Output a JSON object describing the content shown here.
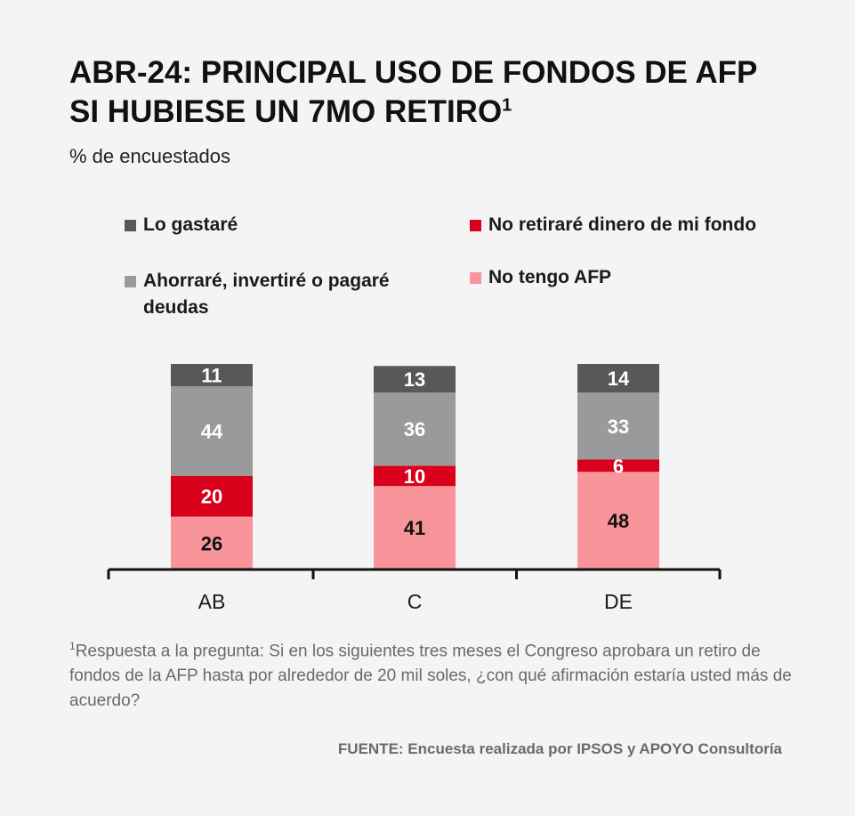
{
  "header": {
    "title_line1": "ABR-24: PRINCIPAL USO DE FONDOS DE AFP",
    "title_line2": "SI HUBIESE UN 7MO RETIRO",
    "title_sup": "1",
    "subtitle": "% de encuestados"
  },
  "legend": {
    "items": [
      {
        "label": "Lo gastaré",
        "color": "#58585a"
      },
      {
        "label": "No retiraré dinero de mi fondo",
        "color": "#d9001b"
      },
      {
        "label": "Ahorraré, invertiré o pagaré deudas",
        "color": "#9a9a9c"
      },
      {
        "label": "No tengo AFP",
        "color": "#f7959b"
      }
    ]
  },
  "chart_data": {
    "type": "bar",
    "stacked": true,
    "categories": [
      "AB",
      "C",
      "DE"
    ],
    "series": [
      {
        "name": "No tengo AFP",
        "color": "#f7959b",
        "label_color": "#111111",
        "values": [
          26,
          41,
          48
        ]
      },
      {
        "name": "No retiraré dinero de mi fondo",
        "color": "#d9001b",
        "label_color": "#ffffff",
        "values": [
          20,
          10,
          6
        ]
      },
      {
        "name": "Ahorraré, invertiré o pagaré deudas",
        "color": "#9a9a9c",
        "label_color": "#ffffff",
        "values": [
          44,
          36,
          33
        ]
      },
      {
        "name": "Lo gastaré",
        "color": "#58585a",
        "label_color": "#ffffff",
        "values": [
          11,
          13,
          14
        ]
      }
    ],
    "ylim": [
      0,
      101
    ],
    "grid": false,
    "legend_position": "top"
  },
  "footnote": {
    "sup": "1",
    "text": "Respuesta a la pregunta: Si en los siguientes tres meses el Congreso aprobara un retiro de fondos de la AFP hasta por alrededor de 20 mil soles, ¿con qué afirmación estaría usted más de acuerdo?"
  },
  "source": "FUENTE: Encuesta realizada por IPSOS y APOYO Consultoría"
}
